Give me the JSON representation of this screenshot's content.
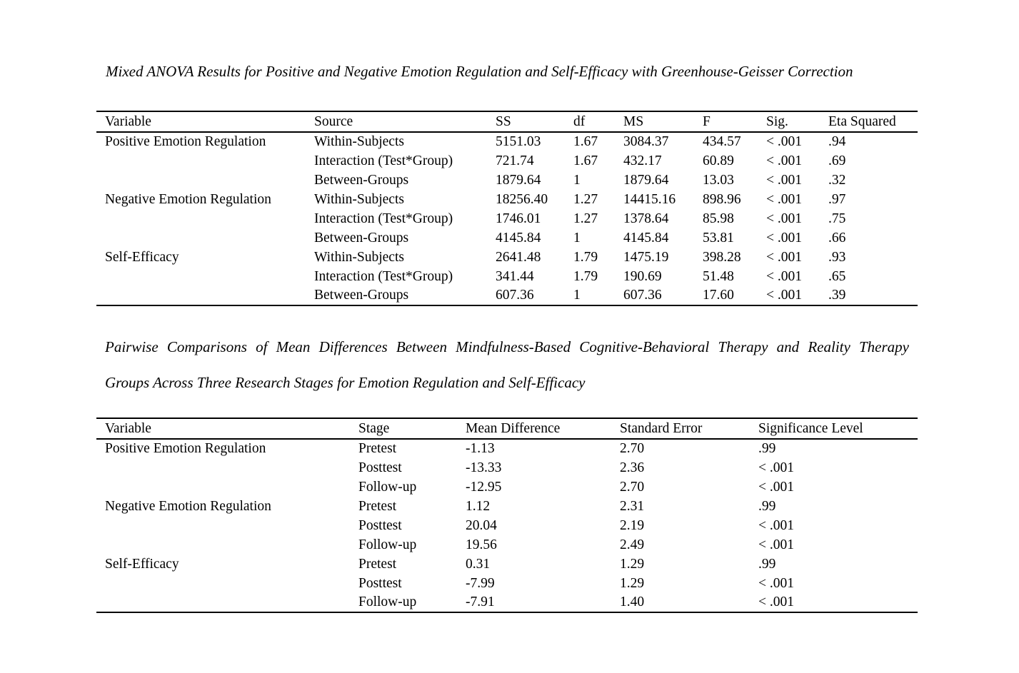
{
  "page": {
    "background_color": "#ffffff",
    "text_color": "#000000"
  },
  "anova_table": {
    "title": "Mixed ANOVA Results for Positive and Negative Emotion Regulation and Self-Efficacy with Greenhouse-Geisser Correction",
    "columns": [
      "Variable",
      "Source",
      "SS",
      "df",
      "MS",
      "F",
      "Sig.",
      "Eta Squared"
    ],
    "rows": [
      [
        "Positive Emotion Regulation",
        "Within-Subjects",
        "5151.03",
        "1.67",
        "3084.37",
        "434.57",
        "< .001",
        ".94"
      ],
      [
        "",
        "Interaction (Test*Group)",
        "721.74",
        "1.67",
        "432.17",
        "60.89",
        "< .001",
        ".69"
      ],
      [
        "",
        "Between-Groups",
        "1879.64",
        "1",
        "1879.64",
        "13.03",
        "< .001",
        ".32"
      ],
      [
        "Negative Emotion Regulation",
        "Within-Subjects",
        "18256.40",
        "1.27",
        "14415.16",
        "898.96",
        "< .001",
        ".97"
      ],
      [
        "",
        "Interaction (Test*Group)",
        "1746.01",
        "1.27",
        "1378.64",
        "85.98",
        "< .001",
        ".75"
      ],
      [
        "",
        "Between-Groups",
        "4145.84",
        "1",
        "4145.84",
        "53.81",
        "< .001",
        ".66"
      ],
      [
        "Self-Efficacy",
        "Within-Subjects",
        "2641.48",
        "1.79",
        "1475.19",
        "398.28",
        "< .001",
        ".93"
      ],
      [
        "",
        "Interaction (Test*Group)",
        "341.44",
        "1.79",
        "190.69",
        "51.48",
        "< .001",
        ".65"
      ],
      [
        "",
        "Between-Groups",
        "607.36",
        "1",
        "607.36",
        "17.60",
        "< .001",
        ".39"
      ]
    ]
  },
  "pairwise_table": {
    "title_line1": "Pairwise Comparisons of Mean Differences Between Mindfulness-Based Cognitive-Behavioral Therapy and Reality Therapy",
    "title_line2": "Groups Across Three Research Stages for Emotion Regulation and Self-Efficacy",
    "columns": [
      "Variable",
      "Stage",
      "Mean Difference",
      "Standard Error",
      "Significance Level"
    ],
    "rows": [
      [
        "Positive Emotion Regulation",
        "Pretest",
        "-1.13",
        "2.70",
        ".99"
      ],
      [
        "",
        "Posttest",
        "-13.33",
        "2.36",
        "< .001"
      ],
      [
        "",
        "Follow-up",
        "-12.95",
        "2.70",
        "< .001"
      ],
      [
        "Negative Emotion Regulation",
        "Pretest",
        "1.12",
        "2.31",
        ".99"
      ],
      [
        "",
        "Posttest",
        "20.04",
        "2.19",
        "< .001"
      ],
      [
        "",
        "Follow-up",
        "19.56",
        "2.49",
        "< .001"
      ],
      [
        "Self-Efficacy",
        "Pretest",
        "0.31",
        "1.29",
        ".99"
      ],
      [
        "",
        "Posttest",
        "-7.99",
        "1.29",
        "< .001"
      ],
      [
        "",
        "Follow-up",
        "-7.91",
        "1.40",
        "< .001"
      ]
    ]
  }
}
